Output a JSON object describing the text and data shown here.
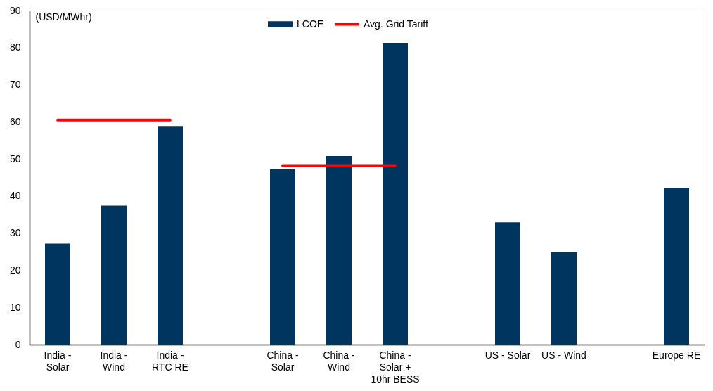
{
  "chart_data": {
    "type": "bar",
    "ylabel": "(USD/MWhr)",
    "categories": [
      "India - Solar",
      "India - Wind",
      "India - RTC RE",
      null,
      "China - Solar",
      "China - Wind",
      "China - Solar + 10hr BESS",
      null,
      "US - Solar",
      "US - Wind",
      null,
      "Europe RE"
    ],
    "series": [
      {
        "name": "LCOE",
        "color": "#003560",
        "values": [
          27.2,
          37.4,
          58.9,
          null,
          47.2,
          50.8,
          81.3,
          null,
          32.9,
          24.9,
          null,
          42.2
        ]
      },
      {
        "name": "Avg. Grid Tariff",
        "type": "line",
        "color": "#ff0000",
        "values": [
          60.5,
          60.5,
          60.5,
          null,
          48.2,
          48.2,
          48.2,
          null,
          null,
          null,
          null,
          null
        ]
      }
    ],
    "ylim": [
      0,
      90
    ],
    "yticks": [
      0,
      10,
      20,
      30,
      40,
      50,
      60,
      70,
      80,
      90
    ],
    "grid": false,
    "legend": "top"
  }
}
